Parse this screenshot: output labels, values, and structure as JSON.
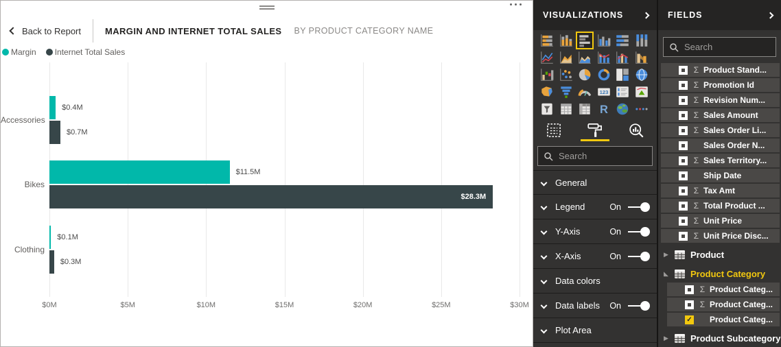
{
  "report": {
    "back_label": "Back to Report",
    "title": "MARGIN AND INTERNET TOTAL SALES",
    "subtitle": "BY PRODUCT CATEGORY NAME"
  },
  "chart_data": {
    "type": "bar",
    "orientation": "horizontal",
    "title": "Margin and Internet Total Sales by Product Category Name",
    "categories": [
      "Accessories",
      "Bikes",
      "Clothing"
    ],
    "series": [
      {
        "name": "Margin",
        "color": "#01B8AA",
        "values": [
          0.4,
          11.5,
          0.1
        ],
        "labels": [
          "$0.4M",
          "$11.5M",
          "$0.1M"
        ]
      },
      {
        "name": "Internet Total Sales",
        "color": "#374649",
        "values": [
          0.7,
          28.3,
          0.3
        ],
        "labels": [
          "$0.7M",
          "$28.3M",
          "$0.3M"
        ]
      }
    ],
    "x_ticks": [
      "$0M",
      "$5M",
      "$10M",
      "$15M",
      "$20M",
      "$25M",
      "$30M"
    ],
    "xlim": [
      0,
      30
    ],
    "xlabel": "",
    "ylabel": "",
    "grid": true,
    "legend_position": "top-left",
    "data_labels": true
  },
  "viz_panel": {
    "title": "VISUALIZATIONS",
    "search_placeholder": "Search",
    "selected_icon": "clustered-bar-chart",
    "selected_tab": "format",
    "icons": [
      "stacked-bar-chart",
      "stacked-column-chart",
      "clustered-bar-chart",
      "clustered-column-chart",
      "100-stacked-bar-chart",
      "100-stacked-column-chart",
      "line-chart",
      "area-chart",
      "stacked-area-chart",
      "line-and-stacked-column-chart",
      "line-and-clustered-column-chart",
      "ribbon-chart",
      "waterfall-chart",
      "scatter-chart",
      "pie-chart",
      "donut-chart",
      "treemap",
      "map",
      "filled-map",
      "funnel",
      "gauge",
      "card",
      "multi-row-card",
      "kpi",
      "slicer",
      "table",
      "matrix",
      "r-script",
      "arcgis-map",
      "more-options"
    ],
    "tabs": [
      "fields",
      "format",
      "analytics"
    ],
    "format_sections": [
      {
        "label": "General",
        "toggle": null
      },
      {
        "label": "Legend",
        "toggle": "On"
      },
      {
        "label": "Y-Axis",
        "toggle": "On"
      },
      {
        "label": "X-Axis",
        "toggle": "On"
      },
      {
        "label": "Data colors",
        "toggle": null
      },
      {
        "label": "Data labels",
        "toggle": "On"
      },
      {
        "label": "Plot Area",
        "toggle": null
      }
    ]
  },
  "fields_panel": {
    "title": "FIELDS",
    "search_placeholder": "Search",
    "items": [
      {
        "kind": "field",
        "label": "Product Stand...",
        "sigma": true,
        "checked": false,
        "indent": 0
      },
      {
        "kind": "field",
        "label": "Promotion Id",
        "sigma": true,
        "checked": false,
        "indent": 0
      },
      {
        "kind": "field",
        "label": "Revision Num...",
        "sigma": true,
        "checked": false,
        "indent": 0
      },
      {
        "kind": "field",
        "label": "Sales Amount",
        "sigma": true,
        "checked": false,
        "indent": 0
      },
      {
        "kind": "field",
        "label": "Sales Order Li...",
        "sigma": true,
        "checked": false,
        "indent": 0
      },
      {
        "kind": "field",
        "label": "Sales Order N...",
        "sigma": false,
        "checked": false,
        "indent": 0
      },
      {
        "kind": "field",
        "label": "Sales Territory...",
        "sigma": true,
        "checked": false,
        "indent": 0
      },
      {
        "kind": "field",
        "label": "Ship Date",
        "sigma": false,
        "checked": false,
        "indent": 0
      },
      {
        "kind": "field",
        "label": "Tax Amt",
        "sigma": true,
        "checked": false,
        "indent": 0
      },
      {
        "kind": "field",
        "label": "Total Product ...",
        "sigma": true,
        "checked": false,
        "indent": 0
      },
      {
        "kind": "field",
        "label": "Unit Price",
        "sigma": true,
        "checked": false,
        "indent": 0
      },
      {
        "kind": "field",
        "label": "Unit Price Disc...",
        "sigma": true,
        "checked": false,
        "indent": 0
      },
      {
        "kind": "table",
        "label": "Product",
        "expanded": false,
        "highlighted": false
      },
      {
        "kind": "table",
        "label": "Product Category",
        "expanded": true,
        "highlighted": true
      },
      {
        "kind": "field",
        "label": "Product Categ...",
        "sigma": true,
        "checked": false,
        "indent": 1
      },
      {
        "kind": "field",
        "label": "Product Categ...",
        "sigma": true,
        "checked": false,
        "indent": 1
      },
      {
        "kind": "field",
        "label": "Product Categ...",
        "sigma": false,
        "checked": true,
        "indent": 1
      },
      {
        "kind": "table",
        "label": "Product Subcategory",
        "expanded": false,
        "highlighted": false
      }
    ]
  },
  "colors": {
    "accent_teal": "#01B8AA",
    "bar_dark": "#374649",
    "highlight_yellow": "#F2C80F",
    "panel_bg": "#333231",
    "panel_header_bg": "#252423"
  }
}
